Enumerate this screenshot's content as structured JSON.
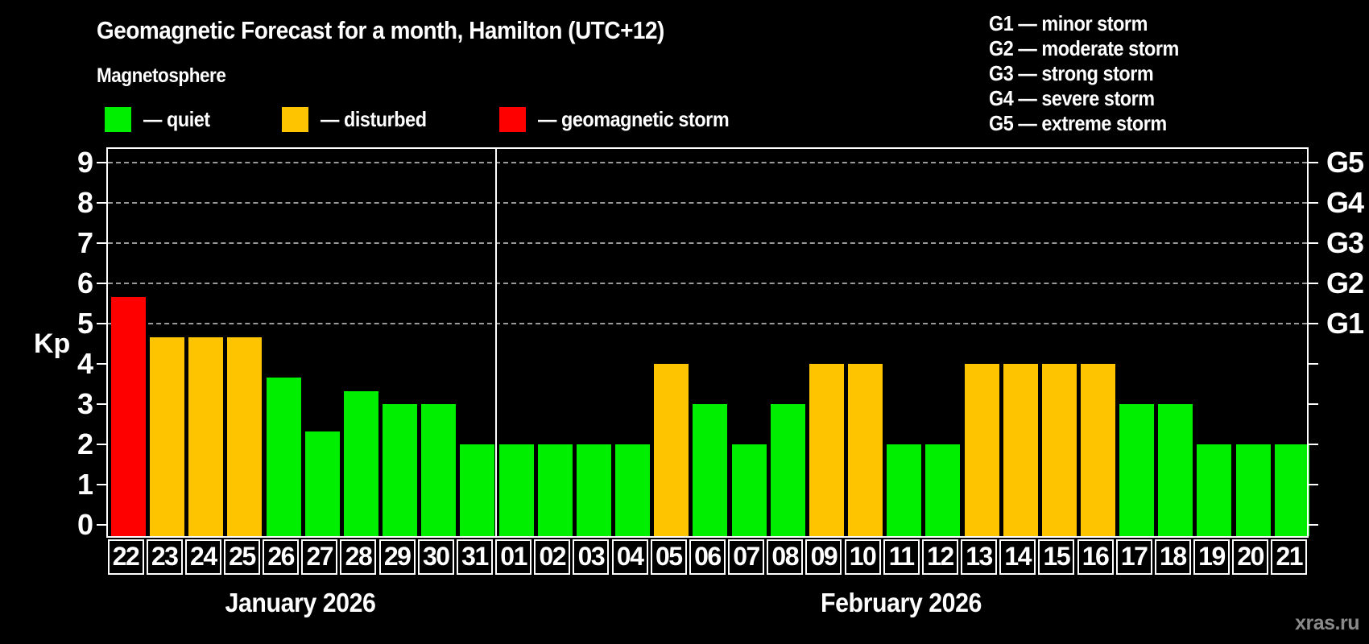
{
  "header": {
    "title": "Geomagnetic Forecast for a month, Hamilton (UTC+12)",
    "subtitle": "Magnetosphere"
  },
  "legend": {
    "items": [
      {
        "name": "quiet",
        "label": "— quiet",
        "color": "#00ee00"
      },
      {
        "name": "disturbed",
        "label": "— disturbed",
        "color": "#ffc400"
      },
      {
        "name": "storm",
        "label": "— geomagnetic storm",
        "color": "#ff0000"
      }
    ]
  },
  "gscale": {
    "items": [
      "G1 — minor storm",
      "G2 — moderate storm",
      "G3 — strong storm",
      "G4 — severe storm",
      "G5 — extreme storm"
    ]
  },
  "watermark": "xras.ru",
  "chart_data": {
    "type": "bar",
    "title": "Geomagnetic Forecast for a month, Hamilton (UTC+12)",
    "ylabel": "Kp",
    "ylim": [
      0,
      9.4
    ],
    "yticks": [
      0,
      1,
      2,
      3,
      4,
      5,
      6,
      7,
      8,
      9
    ],
    "grid": "horizontal dashed gridlines at Kp 5,6,7,8,9 only",
    "right_axis": [
      {
        "kp": 5,
        "label": "G1"
      },
      {
        "kp": 6,
        "label": "G2"
      },
      {
        "kp": 7,
        "label": "G3"
      },
      {
        "kp": 8,
        "label": "G4"
      },
      {
        "kp": 9,
        "label": "G5"
      }
    ],
    "status_colors": {
      "quiet": "#00ee00",
      "disturbed": "#ffc400",
      "storm": "#ff0000"
    },
    "months": [
      {
        "label": "January 2026",
        "bars": [
          {
            "day": "22",
            "kp": 5.67,
            "status": "storm"
          },
          {
            "day": "23",
            "kp": 4.67,
            "status": "disturbed"
          },
          {
            "day": "24",
            "kp": 4.67,
            "status": "disturbed"
          },
          {
            "day": "25",
            "kp": 4.67,
            "status": "disturbed"
          },
          {
            "day": "26",
            "kp": 3.67,
            "status": "quiet"
          },
          {
            "day": "27",
            "kp": 2.33,
            "status": "quiet"
          },
          {
            "day": "28",
            "kp": 3.33,
            "status": "quiet"
          },
          {
            "day": "29",
            "kp": 3,
            "status": "quiet"
          },
          {
            "day": "30",
            "kp": 3,
            "status": "quiet"
          },
          {
            "day": "31",
            "kp": 2,
            "status": "quiet"
          }
        ]
      },
      {
        "label": "February 2026",
        "bars": [
          {
            "day": "01",
            "kp": 2,
            "status": "quiet"
          },
          {
            "day": "02",
            "kp": 2,
            "status": "quiet"
          },
          {
            "day": "03",
            "kp": 2,
            "status": "quiet"
          },
          {
            "day": "04",
            "kp": 2,
            "status": "quiet"
          },
          {
            "day": "05",
            "kp": 4,
            "status": "disturbed"
          },
          {
            "day": "06",
            "kp": 3,
            "status": "quiet"
          },
          {
            "day": "07",
            "kp": 2,
            "status": "quiet"
          },
          {
            "day": "08",
            "kp": 3,
            "status": "quiet"
          },
          {
            "day": "09",
            "kp": 4,
            "status": "disturbed"
          },
          {
            "day": "10",
            "kp": 4,
            "status": "disturbed"
          },
          {
            "day": "11",
            "kp": 2,
            "status": "quiet"
          },
          {
            "day": "12",
            "kp": 2,
            "status": "quiet"
          },
          {
            "day": "13",
            "kp": 4,
            "status": "disturbed"
          },
          {
            "day": "14",
            "kp": 4,
            "status": "disturbed"
          },
          {
            "day": "15",
            "kp": 4,
            "status": "disturbed"
          },
          {
            "day": "16",
            "kp": 4,
            "status": "disturbed"
          },
          {
            "day": "17",
            "kp": 3,
            "status": "quiet"
          },
          {
            "day": "18",
            "kp": 3,
            "status": "quiet"
          },
          {
            "day": "19",
            "kp": 2,
            "status": "quiet"
          },
          {
            "day": "20",
            "kp": 2,
            "status": "quiet"
          },
          {
            "day": "21",
            "kp": 2,
            "status": "quiet"
          }
        ]
      }
    ]
  }
}
